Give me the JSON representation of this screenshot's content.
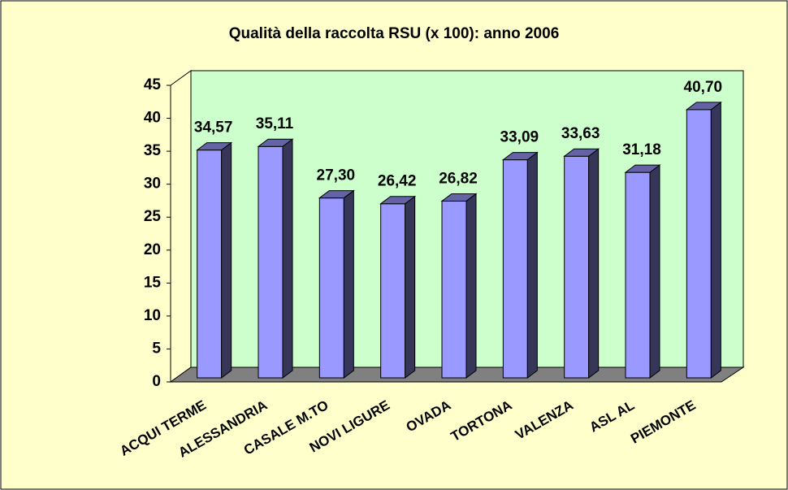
{
  "chart_data": {
    "type": "bar",
    "title": "Qualità della raccolta RSU (x 100): anno 2006",
    "categories": [
      "ACQUI TERME",
      "ALESSANDRIA",
      "CASALE M.TO",
      "NOVI LIGURE",
      "OVADA",
      "TORTONA",
      "VALENZA",
      "ASL AL",
      "PIEMONTE"
    ],
    "values": [
      34.57,
      35.11,
      27.3,
      26.42,
      26.82,
      33.09,
      33.63,
      31.18,
      40.7
    ],
    "value_labels": [
      "34,57",
      "35,11",
      "27,30",
      "26,42",
      "26,82",
      "33,09",
      "33,63",
      "31,18",
      "40,70"
    ],
    "color": "#9999ff",
    "ylim": [
      0,
      45
    ],
    "yticks": [
      0,
      5,
      10,
      15,
      20,
      25,
      30,
      35,
      40,
      45
    ],
    "grid": false
  }
}
